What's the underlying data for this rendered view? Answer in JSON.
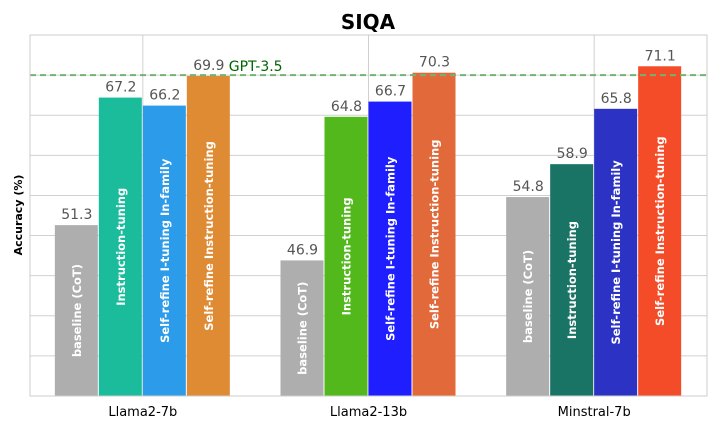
{
  "chart_data": {
    "type": "bar",
    "title": "SIQA",
    "xlabel": "",
    "ylabel": "Accuracy (%)",
    "ylim": [
      30,
      75
    ],
    "grid": true,
    "categories": [
      "Llama2-7b",
      "Llama2-13b",
      "Minstral-7b"
    ],
    "series": [
      {
        "name": "baseline (CoT)",
        "values": [
          51.3,
          46.9,
          54.8
        ],
        "labels": [
          "baseline (CoT)",
          "baseline (CoT)",
          "baseline (CoT)"
        ],
        "colors": [
          "#aeaeae",
          "#aeaeae",
          "#aeaeae"
        ]
      },
      {
        "name": "Instruction-tuning",
        "values": [
          67.2,
          64.8,
          58.9
        ],
        "labels": [
          "Instruction-tuning",
          "Instruction-tuning",
          "Instruction-tuning"
        ],
        "colors": [
          "#1abc9c",
          "#52b81b",
          "#1a7466"
        ]
      },
      {
        "name": "Self-refine I-tuning In-family",
        "values": [
          66.2,
          66.7,
          65.8
        ],
        "labels": [
          "Self-refine I-tuning In-family",
          "Self-refine I-tuning In-family",
          "Self-refine I-tuning In-family"
        ],
        "colors": [
          "#2b9bea",
          "#1e1efe",
          "#2c33c4"
        ]
      },
      {
        "name": "Self-refine Instruction-tuning",
        "values": [
          69.9,
          70.3,
          71.1
        ],
        "labels": [
          "Self-refine Instruction-tuning",
          "Self-refine Instruction-tuning",
          "Self-refine Instruction-tuning"
        ],
        "colors": [
          "#de8b34",
          "#e2693a",
          "#f44b28"
        ]
      }
    ],
    "reference_line": {
      "label": "GPT-3.5",
      "value": 70.0,
      "color": "#74b274",
      "label_color": "#006400"
    },
    "value_label_color": "#555555",
    "grid_color": "#d0d0d0"
  }
}
